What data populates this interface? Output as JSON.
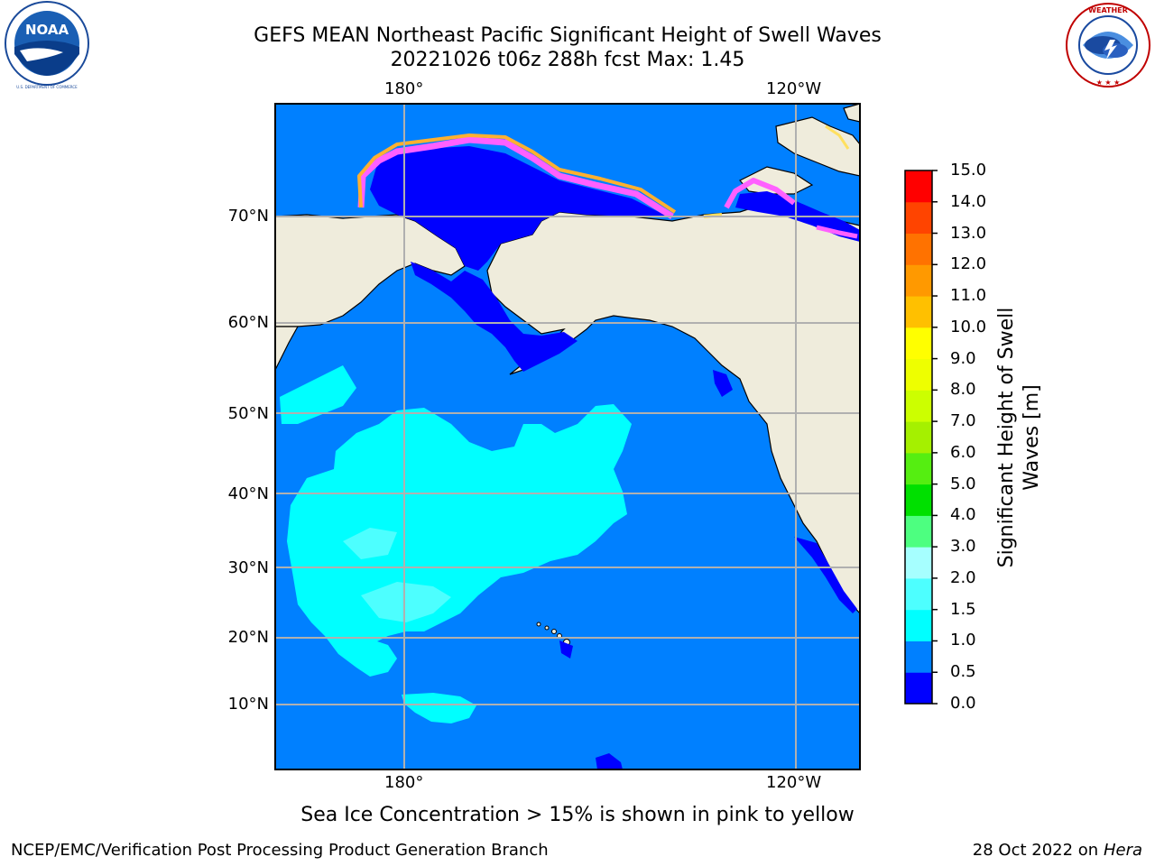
{
  "title": {
    "line1": "GEFS MEAN Northeast Pacific Significant Height of Swell Waves",
    "line2": "20221026 t06z 288h fcst   Max: 1.45"
  },
  "logos": {
    "left": "noaa-logo",
    "left_text": "NOAA",
    "left_ring_text": "NATIONAL OCEANIC AND ATMOSPHERIC ADMINISTRATION · U.S. DEPARTMENT OF COMMERCE",
    "right": "national-weather-service-logo",
    "right_ring_text": "NATIONAL WEATHER SERVICE"
  },
  "map": {
    "lon_ticks": [
      "180°",
      "120°W"
    ],
    "lat_ticks": [
      "70°N",
      "60°N",
      "50°N",
      "40°N",
      "30°N",
      "20°N",
      "10°N"
    ],
    "colors": {
      "land": "#efecdc",
      "ocean_0_05": "#0000ff",
      "ocean_05_1": "#0080ff",
      "ocean_1_15": "#00ffff",
      "ocean_15_2": "#4dffff",
      "ice_pink": "#ff60ff",
      "ice_orange": "#ffb030",
      "ice_yellow": "#ffe060",
      "grid": "#b0b0b0"
    }
  },
  "colorbar": {
    "title_line1": "Significant Height of Swell",
    "title_line2": "Waves [m]",
    "ticks": [
      "15.0",
      "14.0",
      "13.0",
      "12.0",
      "11.0",
      "10.0",
      "9.0",
      "8.0",
      "7.0",
      "6.0",
      "5.0",
      "4.0",
      "3.0",
      "2.0",
      "1.5",
      "1.0",
      "0.5",
      "0.0"
    ],
    "colors_bottom_to_top": [
      "#0000ff",
      "#0080ff",
      "#00ffff",
      "#4dffff",
      "#a6ffff",
      "#4dff80",
      "#00e000",
      "#55ee11",
      "#a5f000",
      "#ccff00",
      "#eeff00",
      "#ffff00",
      "#ffc000",
      "#ff9900",
      "#ff7200",
      "#ff4400",
      "#ff0000"
    ]
  },
  "note": "Sea Ice Concentration > 15% is shown in pink to yellow",
  "footer": {
    "left": "NCEP/EMC/Verification Post Processing Product Generation Branch",
    "right_date": "28 Oct 2022 on ",
    "right_host": "Hera"
  }
}
